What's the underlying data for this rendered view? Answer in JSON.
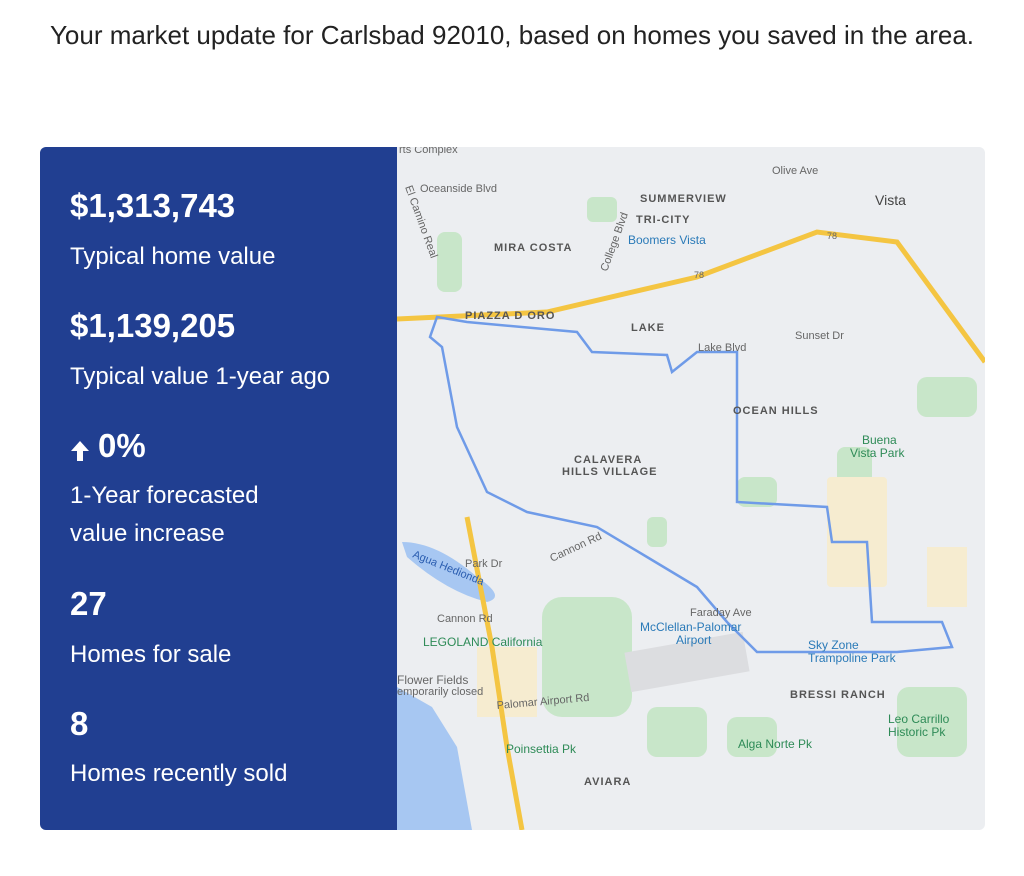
{
  "header": {
    "text": "Your market update for Carlsbad 92010, based on homes you saved in the area."
  },
  "stats": [
    {
      "value": "$1,313,743",
      "label": "Typical home value"
    },
    {
      "value": "$1,139,205",
      "label": "Typical value 1-year ago"
    },
    {
      "value": "0%",
      "label": "1-Year forecasted value increase"
    },
    {
      "value": "27",
      "label": "Homes for sale"
    },
    {
      "value": "8",
      "label": "Homes recently sold"
    }
  ],
  "map": {
    "labels": [
      "rts Complex",
      "Oceanside Blvd",
      "SUMMERVIEW",
      "Olive Ave",
      "Vista",
      "TRI-CITY",
      "MIRA COSTA",
      "Boomers Vista",
      "PIAZZA D ORO",
      "LAKE",
      "Lake Blvd",
      "Sunset Dr",
      "OCEAN HILLS",
      "CALAVERA",
      "HILLS VILLAGE",
      "Buena",
      "Vista Park",
      "Cannon Rd",
      "Park Dr",
      "Agua Hedionda",
      "Cannon Rd",
      "Faraday Ave",
      "McClellan-Palomar",
      "Airport",
      "Sky Zone",
      "Trampoline Park",
      "LEGOLAND California",
      "Flower Fields",
      "emporarily closed",
      "Palomar Airport Rd",
      "BRESSI RANCH",
      "Leo Carrillo",
      "Historic Pk",
      "Poinsettia Pk",
      "Alga Norte Pk",
      "AVIARA",
      "El Camino Real",
      "College Blvd",
      "78",
      "78"
    ]
  }
}
